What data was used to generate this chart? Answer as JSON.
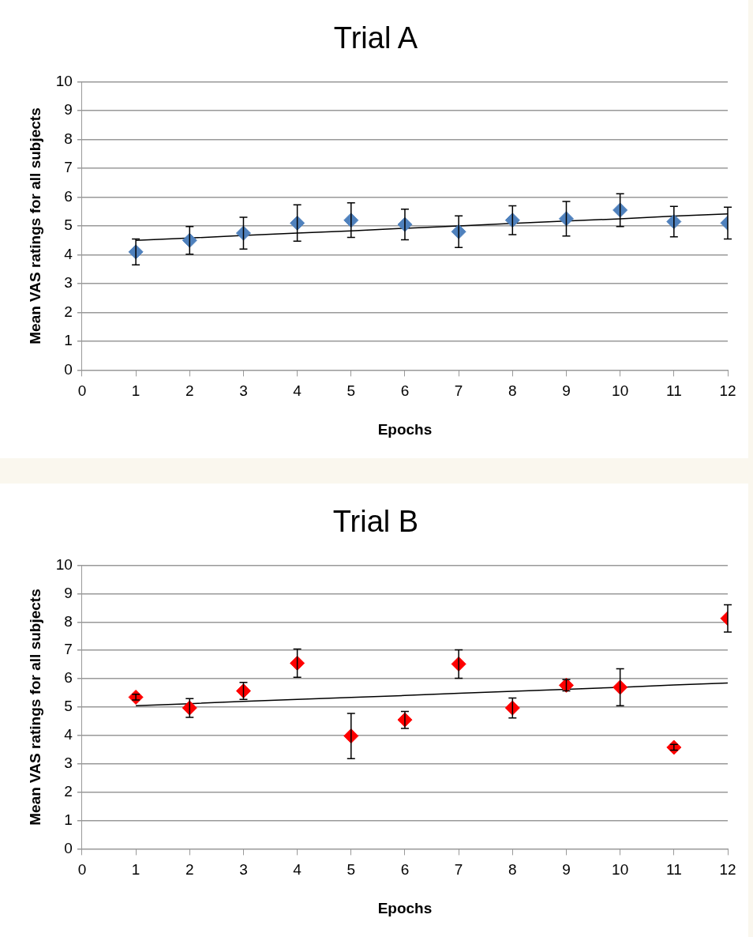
{
  "chart_data": [
    {
      "type": "scatter",
      "title": "Trial A",
      "xlabel": "Epochs",
      "ylabel": "Mean VAS ratings for all subjects",
      "x": [
        1,
        2,
        3,
        4,
        5,
        6,
        7,
        8,
        9,
        10,
        11,
        12
      ],
      "xlim": [
        0,
        12
      ],
      "xticks": [
        0,
        1,
        2,
        3,
        4,
        5,
        6,
        7,
        8,
        9,
        10,
        11,
        12
      ],
      "ylim": [
        0,
        10
      ],
      "yticks": [
        0,
        1,
        2,
        3,
        4,
        5,
        6,
        7,
        8,
        9,
        10
      ],
      "grid": "y",
      "legend": false,
      "marker": "diamond",
      "series": [
        {
          "color": "#4f81bd",
          "values": [
            4.1,
            4.5,
            4.75,
            5.1,
            5.2,
            5.05,
            4.8,
            5.2,
            5.25,
            5.55,
            5.15,
            5.1
          ],
          "errors": [
            0.45,
            0.48,
            0.55,
            0.63,
            0.6,
            0.53,
            0.55,
            0.5,
            0.6,
            0.57,
            0.53,
            0.55
          ]
        },
        {
          "type": "line",
          "color": "#000000",
          "values": [
            4.5,
            4.58,
            4.67,
            4.75,
            4.83,
            4.92,
            5.0,
            5.09,
            5.17,
            5.25,
            5.34,
            5.42
          ],
          "marker": "none",
          "line_style": "solid"
        }
      ]
    },
    {
      "type": "scatter",
      "title": "Trial B",
      "xlabel": "Epochs",
      "ylabel": "Mean VAS ratings for all subjects",
      "x": [
        1,
        2,
        3,
        4,
        5,
        6,
        7,
        8,
        9,
        10,
        11,
        12
      ],
      "xlim": [
        0,
        12
      ],
      "xticks": [
        0,
        1,
        2,
        3,
        4,
        5,
        6,
        7,
        8,
        9,
        10,
        11,
        12
      ],
      "ylim": [
        0,
        10
      ],
      "yticks": [
        0,
        1,
        2,
        3,
        4,
        5,
        6,
        7,
        8,
        9,
        10
      ],
      "grid": "y",
      "legend": false,
      "marker": "diamond",
      "series": [
        {
          "color": "#ff0000",
          "values": [
            5.35,
            4.97,
            5.57,
            6.55,
            3.98,
            4.55,
            6.52,
            4.97,
            5.77,
            5.7,
            3.58,
            8.13
          ],
          "errors": [
            0.1,
            0.33,
            0.3,
            0.5,
            0.8,
            0.3,
            0.5,
            0.35,
            0.2,
            0.65,
            0.1,
            0.48
          ]
        },
        {
          "type": "line",
          "color": "#000000",
          "values": [
            5.05,
            5.12,
            5.2,
            5.27,
            5.34,
            5.41,
            5.49,
            5.56,
            5.63,
            5.7,
            5.78,
            5.85
          ],
          "marker": "none",
          "line_style": "solid"
        }
      ]
    }
  ]
}
